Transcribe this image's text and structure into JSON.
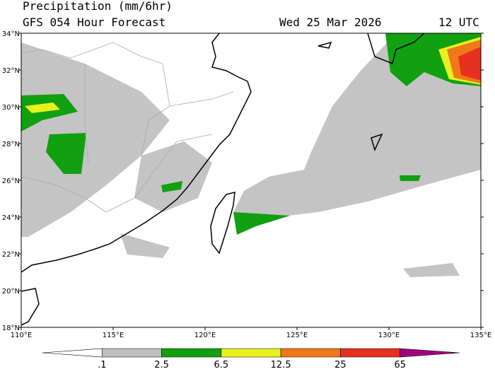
{
  "header": {
    "title": "Precipitation (mm/6hr)",
    "subtitle": "GFS 054 Hour Forecast",
    "date": "Wed 25 Mar 2026",
    "time": "12 UTC"
  },
  "latitude_labels": [
    "34°N",
    "32°N",
    "30°N",
    "28°N",
    "26°N",
    "24°N",
    "22°N",
    "20°N",
    "18°N"
  ],
  "longitude_labels": [
    "110°E",
    "115°E",
    "120°E",
    "125°E",
    "130°E",
    "135°E"
  ],
  "colorbar": {
    "colors": [
      "#ffffff",
      "#c0c0c0",
      "#10a010",
      "#e8f020",
      "#f07818",
      "#e83020",
      "#a00080"
    ],
    "labels": [
      ".1",
      "2.5",
      "6.5",
      "12.5",
      "25",
      "65"
    ]
  }
}
